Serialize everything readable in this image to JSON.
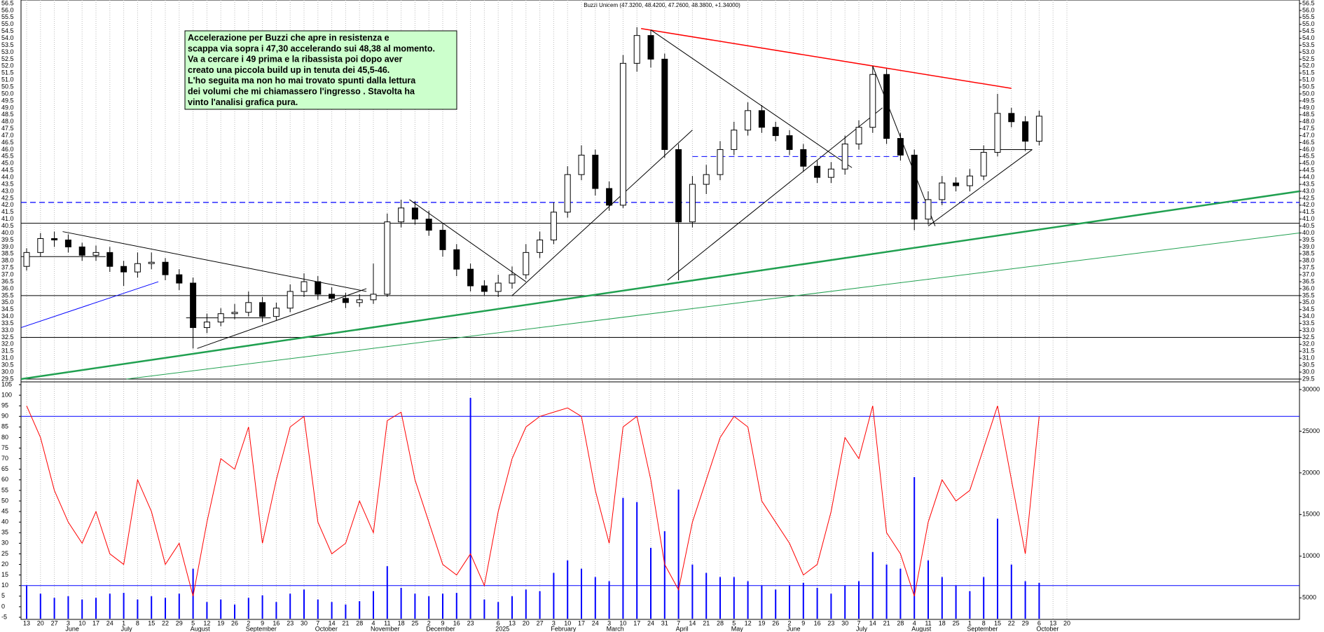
{
  "chart_data": {
    "type": "candlestick",
    "title": "Buzzi Unicem (47.3200, 48.4200, 47.2600, 48.3800, +1.34000)",
    "annotation": {
      "lines": [
        "Accelerazione per Buzzi che apre in resistenza e",
        "scappa via sopra i 47,30 accelerando sui 48,38 al momento.",
        "Va a cercare i 49 prima e la ribassista poi dopo aver",
        "creato una piccola build up in tenuta dei 45,5-46.",
        "L'ho seguita ma non ho mai trovato spunti dalla lettura",
        "dei volumi che mi chiamassero l'ingresso . Stavolta ha",
        "vinto l'analisi grafica pura."
      ],
      "color": "#ccffcc"
    },
    "categories": [
      "13",
      "20",
      "27",
      "3",
      "10",
      "17",
      "24",
      "1",
      "8",
      "15",
      "22",
      "29",
      "5",
      "12",
      "19",
      "26",
      "2",
      "9",
      "16",
      "23",
      "30",
      "7",
      "14",
      "21",
      "28",
      "4",
      "11",
      "18",
      "25",
      "2",
      "9",
      "16",
      "23",
      null,
      "6",
      "13",
      "20",
      "27",
      "3",
      "10",
      "17",
      "24",
      "3",
      "10",
      "17",
      "24",
      "31",
      "7",
      "14",
      "21",
      "28",
      "5",
      "12",
      "19",
      "26",
      "2",
      "9",
      "16",
      "23",
      "30",
      "7",
      "14",
      "21",
      "28",
      "4",
      "11",
      "18",
      "25",
      "1",
      "8",
      "15",
      "22",
      "29",
      "6",
      "13",
      "20"
    ],
    "month_labels": [
      null,
      null,
      null,
      "June",
      null,
      null,
      null,
      "July",
      null,
      null,
      null,
      null,
      "August",
      null,
      null,
      null,
      "September",
      null,
      null,
      null,
      null,
      "October",
      null,
      null,
      null,
      "November",
      null,
      null,
      null,
      "December",
      null,
      null,
      null,
      null,
      "2025",
      null,
      null,
      null,
      "February",
      null,
      null,
      null,
      "March",
      null,
      null,
      null,
      null,
      "April",
      null,
      null,
      null,
      "May",
      null,
      null,
      null,
      "June",
      null,
      null,
      null,
      null,
      "July",
      null,
      null,
      null,
      "August",
      null,
      null,
      null,
      "September",
      null,
      null,
      null,
      null,
      "October",
      null,
      null
    ],
    "open": [
      37.6,
      38.6,
      39.6,
      39.5,
      39.0,
      38.4,
      38.6,
      37.6,
      37.2,
      37.8,
      37.9,
      37.0,
      36.4,
      33.2,
      33.6,
      34.2,
      34.3,
      35.0,
      34.0,
      34.6,
      35.8,
      36.5,
      35.6,
      35.3,
      35.0,
      35.2,
      35.6,
      40.8,
      41.8,
      41.0,
      40.2,
      38.8,
      37.4,
      36.2,
      35.8,
      36.4,
      37.0,
      38.6,
      39.5,
      41.5,
      44.2,
      45.6,
      43.2,
      42.0,
      52.2,
      54.2,
      52.5,
      46.0,
      40.8,
      43.5,
      44.2,
      46.0,
      47.4,
      48.8,
      47.6,
      47.0,
      46.0,
      44.8,
      44.0,
      44.6,
      46.4,
      47.6,
      51.4,
      46.8,
      45.6,
      41.0,
      42.4,
      43.6,
      43.4,
      44.1,
      45.8,
      48.6,
      48.0,
      46.6,
      null,
      null
    ],
    "high": [
      38.9,
      40.0,
      40.1,
      39.9,
      39.3,
      39.1,
      39.0,
      38.0,
      38.6,
      38.6,
      38.2,
      37.4,
      36.8,
      34.2,
      34.6,
      34.9,
      35.8,
      35.4,
      35.0,
      36.3,
      37.1,
      36.9,
      36.1,
      35.7,
      35.6,
      37.8,
      41.4,
      42.4,
      42.3,
      41.6,
      40.7,
      39.2,
      37.8,
      36.6,
      37.0,
      37.6,
      39.2,
      40.1,
      42.2,
      44.8,
      46.3,
      46.0,
      43.7,
      52.8,
      54.8,
      54.6,
      52.9,
      46.4,
      44.1,
      44.9,
      46.6,
      48.0,
      49.4,
      49.2,
      48.0,
      47.4,
      46.4,
      45.2,
      45.1,
      47.0,
      48.1,
      52.0,
      51.8,
      47.2,
      46.0,
      43.0,
      44.1,
      44.0,
      44.6,
      46.3,
      50.0,
      49.0,
      48.4,
      48.8,
      null,
      null
    ],
    "low": [
      37.3,
      38.3,
      39.0,
      38.6,
      38.0,
      38.0,
      37.2,
      36.2,
      36.8,
      37.4,
      36.6,
      35.9,
      31.7,
      32.8,
      33.3,
      33.8,
      34.0,
      33.6,
      33.7,
      34.3,
      35.4,
      35.2,
      35.0,
      34.6,
      34.7,
      34.9,
      35.4,
      40.4,
      40.6,
      39.8,
      38.3,
      36.9,
      35.8,
      35.5,
      35.4,
      36.0,
      36.7,
      38.2,
      39.2,
      41.1,
      43.8,
      42.7,
      41.6,
      41.8,
      51.6,
      51.9,
      45.4,
      36.6,
      40.4,
      42.8,
      43.8,
      45.6,
      47.0,
      47.2,
      46.6,
      45.6,
      44.4,
      43.6,
      43.6,
      44.2,
      46.0,
      47.2,
      46.4,
      45.2,
      40.2,
      40.6,
      42.0,
      43.0,
      43.0,
      43.8,
      45.5,
      47.6,
      45.9,
      46.3,
      null,
      null
    ],
    "close": [
      38.6,
      39.6,
      39.5,
      39.0,
      38.4,
      38.6,
      37.6,
      37.2,
      37.8,
      37.9,
      37.0,
      36.4,
      33.2,
      33.6,
      34.2,
      34.3,
      35.0,
      34.0,
      34.6,
      35.8,
      36.5,
      35.6,
      35.3,
      35.0,
      35.2,
      35.6,
      40.8,
      41.8,
      41.0,
      40.2,
      38.8,
      37.4,
      36.2,
      35.8,
      36.4,
      37.0,
      38.6,
      39.5,
      41.5,
      44.2,
      45.6,
      43.2,
      42.0,
      52.2,
      54.2,
      52.5,
      46.0,
      40.8,
      43.5,
      44.2,
      46.0,
      47.4,
      48.8,
      47.6,
      47.0,
      46.0,
      44.8,
      44.0,
      44.6,
      46.4,
      47.6,
      51.4,
      46.8,
      45.6,
      41.0,
      42.4,
      43.6,
      43.4,
      44.1,
      45.8,
      48.6,
      48.0,
      46.6,
      48.4,
      null,
      null
    ],
    "oscillator": {
      "color": "#ff0000",
      "values": [
        95,
        80,
        55,
        40,
        30,
        45,
        25,
        20,
        60,
        45,
        20,
        30,
        5,
        40,
        70,
        65,
        85,
        30,
        60,
        85,
        90,
        40,
        25,
        30,
        50,
        35,
        88,
        92,
        60,
        40,
        20,
        15,
        25,
        10,
        45,
        70,
        85,
        90,
        92,
        94,
        90,
        55,
        30,
        85,
        90,
        60,
        20,
        8,
        40,
        60,
        80,
        90,
        85,
        50,
        40,
        30,
        15,
        20,
        45,
        80,
        70,
        95,
        35,
        25,
        5,
        40,
        60,
        50,
        55,
        75,
        95,
        60,
        25,
        90,
        null,
        null
      ],
      "levels": [
        90,
        10
      ],
      "level_color": "#0000ff"
    },
    "volume": {
      "color": "#0000ff",
      "values": [
        6500,
        5500,
        5000,
        5200,
        4800,
        5000,
        5500,
        5600,
        4800,
        5200,
        5000,
        5500,
        8500,
        4500,
        4800,
        4200,
        5000,
        5300,
        4500,
        5500,
        6000,
        4800,
        4500,
        4200,
        4600,
        5800,
        8800,
        6200,
        5500,
        5200,
        5500,
        5600,
        29000,
        4800,
        4500,
        5200,
        6000,
        5800,
        8000,
        9500,
        8500,
        7500,
        7000,
        17000,
        16500,
        11000,
        13000,
        18000,
        9000,
        8000,
        7500,
        7500,
        7000,
        6500,
        6000,
        6500,
        6800,
        6200,
        5500,
        6500,
        7000,
        10500,
        9000,
        8500,
        19500,
        9500,
        7500,
        6500,
        5800,
        7500,
        14500,
        9000,
        7000,
        6800,
        null,
        null
      ]
    },
    "ylim": [
      29.5,
      56.5
    ],
    "yticks": [
      29.5,
      {
        "value": 30,
        "label": "30.0"
      },
      30.5,
      {
        "value": 31,
        "label": "31.0"
      },
      31.5,
      {
        "value": 32,
        "label": "32.0"
      },
      32.5,
      {
        "value": 33,
        "label": "33.0"
      },
      33.5,
      {
        "value": 34,
        "label": "34.0"
      },
      34.5,
      {
        "value": 35,
        "label": "35.0"
      },
      35.5,
      {
        "value": 36,
        "label": "36.0"
      },
      36.5,
      {
        "value": 37,
        "label": "37.0"
      },
      37.5,
      {
        "value": 38,
        "label": "38.0"
      },
      38.5,
      {
        "value": 39,
        "label": "39.0"
      },
      39.5,
      {
        "value": 40,
        "label": "40.0"
      },
      40.5,
      {
        "value": 41,
        "label": "41.0"
      },
      41.5,
      {
        "value": 42,
        "label": "42.0"
      },
      42.5,
      {
        "value": 43,
        "label": "43.0"
      },
      43.5,
      {
        "value": 44,
        "label": "44.0"
      },
      44.5,
      {
        "value": 45,
        "label": "45.0"
      },
      45.5,
      {
        "value": 46,
        "label": "46.0"
      },
      46.5,
      {
        "value": 47,
        "label": "47.0"
      },
      47.5,
      {
        "value": 48,
        "label": "48.0"
      },
      48.5,
      {
        "value": 49,
        "label": "49.0"
      },
      49.5,
      {
        "value": 50,
        "label": "50.0"
      },
      50.5,
      {
        "value": 51,
        "label": "51.0"
      },
      51.5,
      {
        "value": 52,
        "label": "52.0"
      },
      52.5,
      {
        "value": 53,
        "label": "53.0"
      },
      53.5,
      {
        "value": 54,
        "label": "54.0"
      },
      54.5,
      {
        "value": 55,
        "label": "55.0"
      },
      55.5,
      {
        "value": 56,
        "label": "56.0"
      },
      56.5
    ],
    "osc_ylim": [
      -5,
      105
    ],
    "osc_yticks": [
      -5,
      0,
      5,
      10,
      15,
      20,
      25,
      30,
      35,
      40,
      45,
      50,
      55,
      60,
      65,
      70,
      75,
      80,
      85,
      90,
      95,
      100,
      105
    ],
    "y2lim": [
      2500,
      30500
    ],
    "y2ticks": [
      5000,
      10000,
      15000,
      20000,
      25000,
      30000
    ],
    "hlines": [
      {
        "value": 42.2,
        "color": "#0000ff",
        "dashed": true
      },
      {
        "value": 40.7,
        "color": "#000000",
        "dashed": false
      },
      {
        "value": 35.5,
        "color": "#000000",
        "dashed": false
      },
      {
        "value": 32.5,
        "color": "#000000",
        "dashed": false
      },
      {
        "value": 29.5,
        "color": "#000000",
        "dashed": false
      }
    ],
    "trendlines": [
      {
        "from": [
          44.3,
          54.7
        ],
        "to": [
          71,
          50.4
        ],
        "color": "#ff0000",
        "width": 1.5,
        "dashed": false
      },
      {
        "from": [
          -0.4,
          29.5
        ],
        "to": [
          91.8,
          43
        ],
        "color": "#20a050",
        "width": 2.5,
        "dashed": false
      },
      {
        "from": [
          7.2,
          29.5
        ],
        "to": [
          91.8,
          40
        ],
        "color": "#20a050",
        "width": 1,
        "dashed": false
      },
      {
        "from": [
          -0.4,
          33.2
        ],
        "to": [
          9.5,
          36.5
        ],
        "color": "#0000ff",
        "width": 1,
        "dashed": false
      },
      {
        "from": [
          2.6,
          40.1
        ],
        "to": [
          24.5,
          35.8
        ],
        "color": "#000000",
        "width": 1,
        "dashed": false
      },
      {
        "from": [
          12.3,
          31.7
        ],
        "to": [
          24.5,
          36
        ],
        "color": "#000000",
        "width": 1,
        "dashed": false
      },
      {
        "from": [
          27.6,
          42.4
        ],
        "to": [
          36,
          36.5
        ],
        "color": "#000000",
        "width": 1,
        "dashed": false
      },
      {
        "from": [
          35,
          35.5
        ],
        "to": [
          48,
          47.4
        ],
        "color": "#000000",
        "width": 1,
        "dashed": false
      },
      {
        "from": [
          45,
          54.6
        ],
        "to": [
          59.5,
          44.7
        ],
        "color": "#000000",
        "width": 1,
        "dashed": false
      },
      {
        "from": [
          46.2,
          36.6
        ],
        "to": [
          61.7,
          49
        ],
        "color": "#000000",
        "width": 1,
        "dashed": false
      },
      {
        "from": [
          61,
          52
        ],
        "to": [
          65.5,
          40.5
        ],
        "color": "#000000",
        "width": 1,
        "dashed": false
      },
      {
        "from": [
          65,
          40.5
        ],
        "to": [
          72.5,
          46
        ],
        "color": "#000000",
        "width": 1,
        "dashed": false
      },
      {
        "from": [
          48,
          45.5
        ],
        "to": [
          63,
          45.5
        ],
        "color": "#0000ff",
        "width": 1,
        "dashed": true
      },
      {
        "from": [
          -0.4,
          38.3
        ],
        "to": [
          5.7,
          38.3
        ],
        "color": "#000000",
        "width": 1,
        "dashed": false
      },
      {
        "from": [
          11.5,
          33.9
        ],
        "to": [
          17.6,
          33.9
        ],
        "color": "#000000",
        "width": 1,
        "dashed": false
      },
      {
        "from": [
          68,
          46
        ],
        "to": [
          72.5,
          46
        ],
        "color": "#000000",
        "width": 1,
        "dashed": false
      }
    ],
    "grid": "vertical"
  }
}
